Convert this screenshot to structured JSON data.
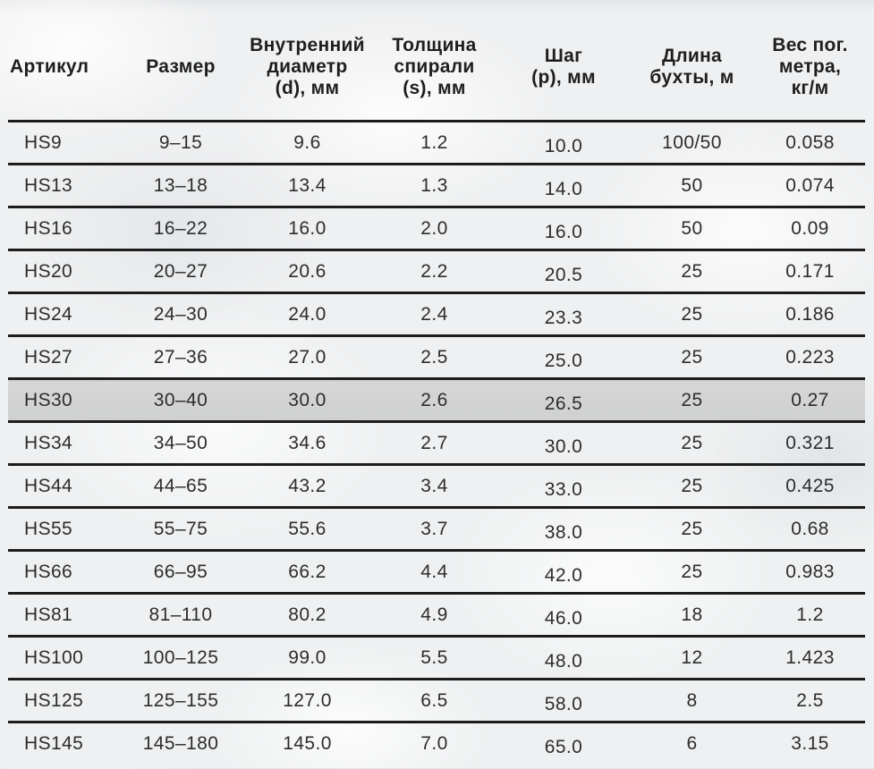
{
  "page": {
    "background_base": "#eff0f1",
    "line_color": "#1c1c1c",
    "text_color": "#2d2d2d",
    "highlight_color": "#d2d2d2"
  },
  "table": {
    "columns": [
      {
        "key": "article",
        "label": "Артикул"
      },
      {
        "key": "size",
        "label": "Размер"
      },
      {
        "key": "inner_diameter",
        "label": "Внутренний\nдиаметр\n(d), мм"
      },
      {
        "key": "spiral_thickness",
        "label": "Толщина\nспирали\n(s), мм"
      },
      {
        "key": "step",
        "label": "Шаг\n(p), мм"
      },
      {
        "key": "coil_length",
        "label": "Длина\nбухты, м"
      },
      {
        "key": "weight_per_meter",
        "label": "Вес пог.\nметра,\nкг/м"
      }
    ],
    "highlighted_row_index": 6,
    "rows": [
      [
        "HS9",
        "9–15",
        "9.6",
        "1.2",
        "10.0",
        "100/50",
        "0.058"
      ],
      [
        "HS13",
        "13–18",
        "13.4",
        "1.3",
        "14.0",
        "50",
        "0.074"
      ],
      [
        "HS16",
        "16–22",
        "16.0",
        "2.0",
        "16.0",
        "50",
        "0.09"
      ],
      [
        "HS20",
        "20–27",
        "20.6",
        "2.2",
        "20.5",
        "25",
        "0.171"
      ],
      [
        "HS24",
        "24–30",
        "24.0",
        "2.4",
        "23.3",
        "25",
        "0.186"
      ],
      [
        "HS27",
        "27–36",
        "27.0",
        "2.5",
        "25.0",
        "25",
        "0.223"
      ],
      [
        "HS30",
        "30–40",
        "30.0",
        "2.6",
        "26.5",
        "25",
        "0.27"
      ],
      [
        "HS34",
        "34–50",
        "34.6",
        "2.7",
        "30.0",
        "25",
        "0.321"
      ],
      [
        "HS44",
        "44–65",
        "43.2",
        "3.4",
        "33.0",
        "25",
        "0.425"
      ],
      [
        "HS55",
        "55–75",
        "55.6",
        "3.7",
        "38.0",
        "25",
        "0.68"
      ],
      [
        "HS66",
        "66–95",
        "66.2",
        "4.4",
        "42.0",
        "25",
        "0.983"
      ],
      [
        "HS81",
        "81–110",
        "80.2",
        "4.9",
        "46.0",
        "18",
        "1.2"
      ],
      [
        "HS100",
        "100–125",
        "99.0",
        "5.5",
        "48.0",
        "12",
        "1.423"
      ],
      [
        "HS125",
        "125–155",
        "127.0",
        "6.5",
        "58.0",
        "8",
        "2.5"
      ],
      [
        "HS145",
        "145–180",
        "145.0",
        "7.0",
        "65.0",
        "6",
        "3.15"
      ]
    ]
  }
}
